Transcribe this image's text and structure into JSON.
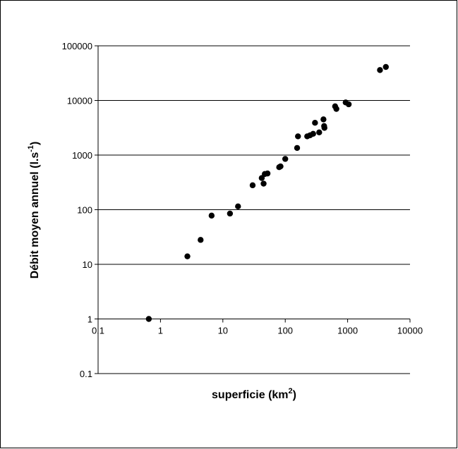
{
  "chart_data": {
    "type": "scatter",
    "title": "",
    "xlabel": {
      "text": "superficie (km",
      "sup": "2",
      "suffix": ")"
    },
    "ylabel": {
      "text": "Débit moyen annuel (l.s",
      "sup": "-1",
      "suffix": ")"
    },
    "x_scale": "log",
    "y_scale": "log",
    "xlim": [
      0.1,
      10000
    ],
    "ylim": [
      0.1,
      100000
    ],
    "x_ticks": [
      0.1,
      1,
      10,
      100,
      1000,
      10000
    ],
    "x_tick_labels": [
      "0.1",
      "1",
      "10",
      "100",
      "1000",
      "10000"
    ],
    "y_ticks": [
      0.1,
      1,
      10,
      100,
      1000,
      10000,
      100000
    ],
    "y_tick_labels": [
      "0.1",
      "1",
      "10",
      "100",
      "1000",
      "10000",
      "100000"
    ],
    "grid": {
      "horizontal": true,
      "vertical": false
    },
    "legend": "none",
    "marker_color": "#000000",
    "series": [
      {
        "points": [
          [
            0.65,
            1
          ],
          [
            2.7,
            14
          ],
          [
            4.4,
            28
          ],
          [
            6.6,
            78
          ],
          [
            13,
            85
          ],
          [
            17.5,
            115
          ],
          [
            30,
            280
          ],
          [
            42,
            380
          ],
          [
            45,
            300
          ],
          [
            47,
            450
          ],
          [
            52,
            460
          ],
          [
            80,
            600
          ],
          [
            84,
            620
          ],
          [
            100,
            850
          ],
          [
            155,
            1350
          ],
          [
            160,
            2200
          ],
          [
            225,
            2200
          ],
          [
            250,
            2300
          ],
          [
            280,
            2450
          ],
          [
            300,
            3900
          ],
          [
            350,
            2600
          ],
          [
            410,
            4500
          ],
          [
            420,
            3400
          ],
          [
            425,
            3150
          ],
          [
            630,
            7800
          ],
          [
            660,
            7000
          ],
          [
            930,
            9200
          ],
          [
            1040,
            8500
          ],
          [
            3300,
            36000
          ],
          [
            4100,
            41000
          ]
        ]
      }
    ]
  }
}
